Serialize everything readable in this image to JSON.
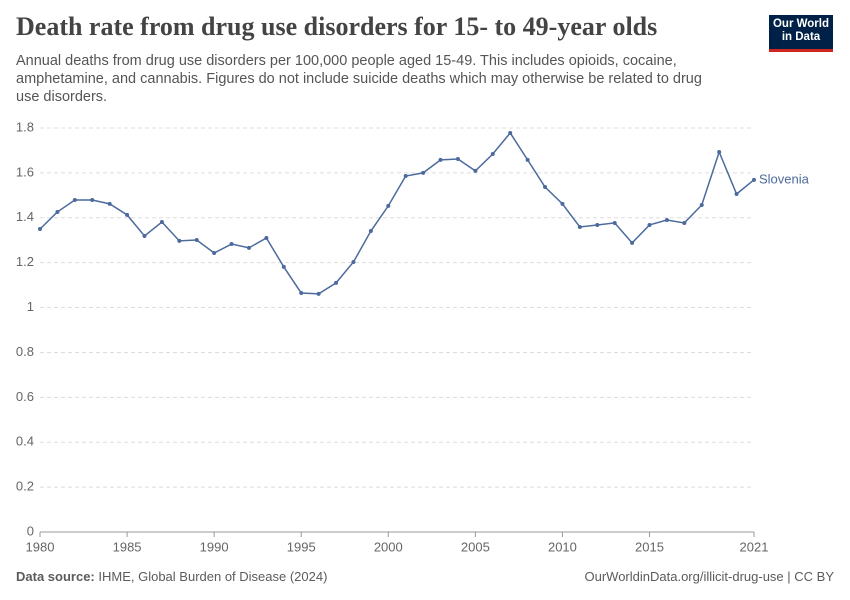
{
  "header": {
    "title": "Death rate from drug use disorders for 15- to 49-year olds",
    "subtitle": "Annual deaths from drug use disorders per 100,000 people aged 15-49. This includes opioids, cocaine, amphetamine, and cannabis. Figures do not include suicide deaths which may otherwise be related to drug use disorders.",
    "logo": [
      "Our World",
      "in Data"
    ]
  },
  "footer": {
    "source_label": "Data source:",
    "source": "IHME, Global Burden of Disease (2024)",
    "url": "OurWorldinData.org/illicit-drug-use | CC BY"
  },
  "chart_data": {
    "type": "line",
    "x": [
      1980,
      1981,
      1982,
      1983,
      1984,
      1985,
      1986,
      1987,
      1988,
      1989,
      1990,
      1991,
      1992,
      1993,
      1994,
      1995,
      1996,
      1997,
      1998,
      1999,
      2000,
      2001,
      2002,
      2003,
      2004,
      2005,
      2006,
      2007,
      2008,
      2009,
      2010,
      2011,
      2012,
      2013,
      2014,
      2015,
      2016,
      2017,
      2018,
      2019,
      2020,
      2021
    ],
    "series": [
      {
        "name": "Slovenia",
        "color": "#4c6a9c",
        "values": [
          1.35,
          1.426,
          1.479,
          1.479,
          1.462,
          1.413,
          1.319,
          1.381,
          1.297,
          1.301,
          1.243,
          1.283,
          1.266,
          1.31,
          1.181,
          1.065,
          1.061,
          1.11,
          1.203,
          1.341,
          1.453,
          1.586,
          1.6,
          1.658,
          1.662,
          1.609,
          1.684,
          1.778,
          1.658,
          1.537,
          1.462,
          1.359,
          1.368,
          1.377,
          1.288,
          1.368,
          1.39,
          1.377,
          1.457,
          1.693,
          1.506,
          1.569
        ]
      }
    ],
    "xlim": [
      1980,
      2021
    ],
    "xticks": [
      1980,
      1985,
      1990,
      1995,
      2000,
      2005,
      2010,
      2015,
      2021
    ],
    "ylim": [
      0,
      1.8
    ],
    "yticks": [
      0,
      0.2,
      0.4,
      0.6,
      0.8,
      1,
      1.2,
      1.4,
      1.6,
      1.8
    ],
    "grid": true
  }
}
